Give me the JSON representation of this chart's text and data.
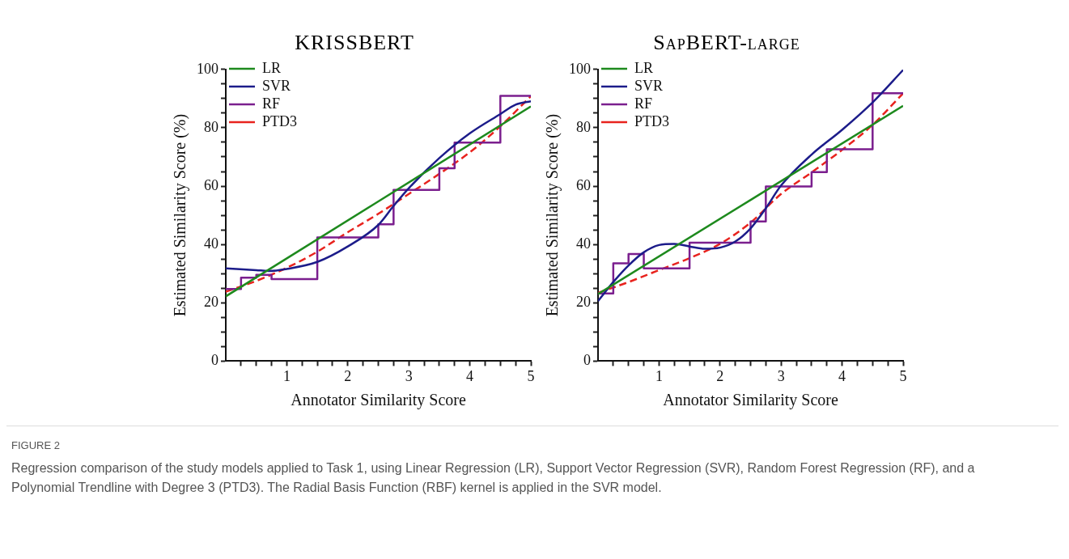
{
  "chart_data": [
    {
      "type": "line",
      "title": "KRISSBERT",
      "xlabel": "Annotator Similarity Score",
      "ylabel": "Estimated Similarity Score (%)",
      "xlim": [
        0,
        5
      ],
      "ylim": [
        0,
        100
      ],
      "xticks": [
        {
          "value": 0.25,
          "label": null
        },
        {
          "value": 0.5,
          "label": null
        },
        {
          "value": 0.75,
          "label": null
        },
        1,
        {
          "value": 1.25,
          "label": null
        },
        {
          "value": 1.5,
          "label": null
        },
        {
          "value": 1.75,
          "label": null
        },
        2,
        {
          "value": 2.25,
          "label": null
        },
        {
          "value": 2.5,
          "label": null
        },
        {
          "value": 2.75,
          "label": null
        },
        3,
        {
          "value": 3.25,
          "label": null
        },
        {
          "value": 3.5,
          "label": null
        },
        {
          "value": 3.75,
          "label": null
        },
        4,
        {
          "value": 4.25,
          "label": null
        },
        {
          "value": 4.5,
          "label": null
        },
        {
          "value": 4.75,
          "label": null
        },
        5
      ],
      "yticks": [
        0,
        {
          "value": 5,
          "label": null
        },
        {
          "value": 10,
          "label": null
        },
        {
          "value": 15,
          "label": null
        },
        20,
        {
          "value": 25,
          "label": null
        },
        {
          "value": 30,
          "label": null
        },
        {
          "value": 35,
          "label": null
        },
        40,
        {
          "value": 45,
          "label": null
        },
        {
          "value": 50,
          "label": null
        },
        {
          "value": 55,
          "label": null
        },
        60,
        {
          "value": 65,
          "label": null
        },
        {
          "value": 70,
          "label": null
        },
        {
          "value": 75,
          "label": null
        },
        80,
        {
          "value": 85,
          "label": null
        },
        {
          "value": 90,
          "label": null
        },
        {
          "value": 95,
          "label": null
        },
        100
      ],
      "grid": false,
      "legend": "top left",
      "series": [
        {
          "name": "LR",
          "color": "#1e8a1e",
          "x": [
            0,
            5
          ],
          "values": [
            22.2,
            87.3
          ]
        },
        {
          "name": "SVR",
          "color": "#1c1c8a",
          "x": [
            0,
            0.5,
            0.7,
            1,
            1.5,
            2,
            2.5,
            2.75,
            3,
            3.5,
            4,
            4.5,
            4.75,
            5
          ],
          "values": [
            31.8,
            31.2,
            30.9,
            31.6,
            34,
            39.3,
            46.7,
            53.2,
            59.3,
            69.6,
            78.1,
            84.7,
            87.9,
            89.1
          ]
        },
        {
          "name": "RF",
          "type": "step",
          "color": "#7b1f8e",
          "x": [
            0,
            0.25,
            0.5,
            0.75,
            1.5,
            2.5,
            2.75,
            3.5,
            3.75,
            4.5,
            5
          ],
          "values": [
            24.7,
            28.6,
            29.6,
            28.1,
            42.4,
            46.9,
            58.7,
            66.1,
            74.9,
            90.9,
            90.9
          ]
        },
        {
          "name": "PTD3",
          "color": "#e8231e",
          "line_style": "dashed",
          "x": [
            0,
            0.5,
            1,
            1.5,
            2,
            2.5,
            3,
            3.5,
            4,
            4.5,
            5
          ],
          "values": [
            23.8,
            27.5,
            32,
            37.5,
            44.2,
            50.5,
            57.3,
            64.2,
            71.6,
            80.5,
            90.8
          ]
        }
      ],
      "annotations": [
        "FIGURE 2",
        "Regression comparison of the study models applied to Task 1, using Linear Regression (LR), Support Vector Regression (SVR), Random Forest Regression (RF), and a Polynomial Trendline with Degree 3 (PTD3). The Radial Basis Function (RBF) kernel is applied in the SVR model."
      ]
    },
    {
      "type": "line",
      "title": "SapBERT-large",
      "xlabel": "Annotator Similarity Score",
      "ylabel": "Estimated Similarity Score (%)",
      "xlim": [
        0,
        5
      ],
      "ylim": [
        0,
        100
      ],
      "xticks": [
        {
          "value": 0.25,
          "label": null
        },
        {
          "value": 0.5,
          "label": null
        },
        {
          "value": 0.75,
          "label": null
        },
        1,
        {
          "value": 1.25,
          "label": null
        },
        {
          "value": 1.5,
          "label": null
        },
        {
          "value": 1.75,
          "label": null
        },
        2,
        {
          "value": 2.25,
          "label": null
        },
        {
          "value": 2.5,
          "label": null
        },
        {
          "value": 2.75,
          "label": null
        },
        3,
        {
          "value": 3.25,
          "label": null
        },
        {
          "value": 3.5,
          "label": null
        },
        {
          "value": 3.75,
          "label": null
        },
        4,
        {
          "value": 4.25,
          "label": null
        },
        {
          "value": 4.5,
          "label": null
        },
        {
          "value": 4.75,
          "label": null
        },
        5
      ],
      "yticks": [
        0,
        {
          "value": 5,
          "label": null
        },
        {
          "value": 10,
          "label": null
        },
        {
          "value": 15,
          "label": null
        },
        20,
        {
          "value": 25,
          "label": null
        },
        {
          "value": 30,
          "label": null
        },
        {
          "value": 35,
          "label": null
        },
        40,
        {
          "value": 45,
          "label": null
        },
        {
          "value": 50,
          "label": null
        },
        {
          "value": 55,
          "label": null
        },
        60,
        {
          "value": 65,
          "label": null
        },
        {
          "value": 70,
          "label": null
        },
        {
          "value": 75,
          "label": null
        },
        80,
        {
          "value": 85,
          "label": null
        },
        {
          "value": 90,
          "label": null
        },
        {
          "value": 95,
          "label": null
        },
        100
      ],
      "grid": false,
      "legend": "top left",
      "series": [
        {
          "name": "LR",
          "color": "#1e8a1e",
          "x": [
            0,
            5
          ],
          "values": [
            23.0,
            87.5
          ]
        },
        {
          "name": "SVR",
          "color": "#1c1c8a",
          "x": [
            0,
            0.25,
            0.5,
            0.75,
            1,
            1.25,
            1.5,
            1.75,
            2,
            2.25,
            2.5,
            2.75,
            3,
            3.5,
            4,
            4.5,
            5
          ],
          "values": [
            20.6,
            27.1,
            32.8,
            37.3,
            39.8,
            40.2,
            39.3,
            38.5,
            38.9,
            41,
            45.5,
            52.4,
            60.2,
            70.8,
            79.3,
            88.7,
            99.8
          ]
        },
        {
          "name": "RF",
          "type": "step",
          "color": "#7b1f8e",
          "x": [
            0,
            0.25,
            0.5,
            0.75,
            1.5,
            2.5,
            2.75,
            3.5,
            3.75,
            4.5,
            5
          ],
          "values": [
            23.2,
            33.5,
            36.7,
            31.8,
            40.6,
            47.9,
            59.9,
            64.8,
            72.6,
            91.8,
            91.8
          ]
        },
        {
          "name": "PTD3",
          "color": "#e8231e",
          "line_style": "dashed",
          "x": [
            0,
            0.5,
            1,
            1.5,
            2,
            2.5,
            3,
            3.5,
            4,
            4.5,
            5
          ],
          "values": [
            23.4,
            27.1,
            31.2,
            35.3,
            40.2,
            47.5,
            57.3,
            64.7,
            72.4,
            81,
            91.8
          ]
        }
      ]
    }
  ]
}
